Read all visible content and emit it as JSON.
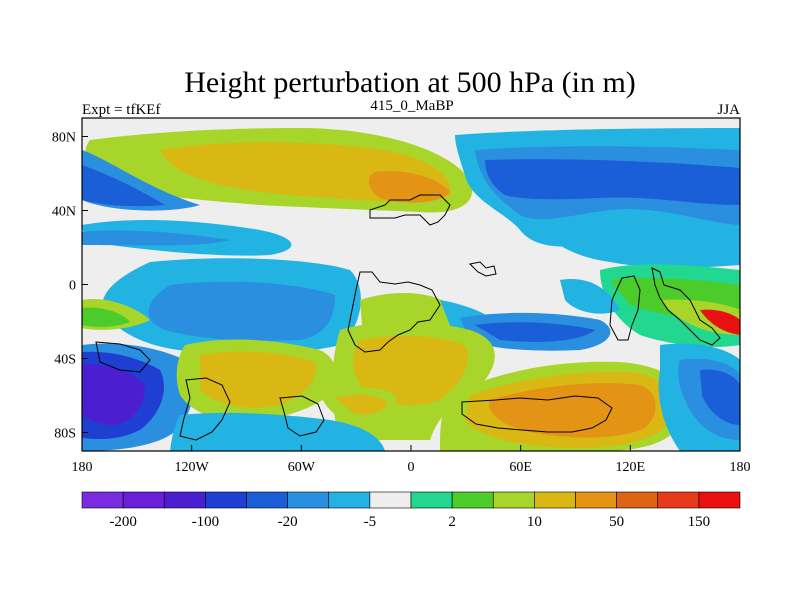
{
  "chart_data": {
    "type": "heatmap",
    "title": "Height perturbation at 500 hPa (in m)",
    "left_label": "Expt = tfKEf",
    "center_label": "415_0_MaBP",
    "right_label": "JJA",
    "x_ticks": [
      "180",
      "120W",
      "60W",
      "0",
      "60E",
      "120E",
      "180"
    ],
    "y_ticks": [
      "80N",
      "40N",
      "0",
      "40S",
      "80S"
    ],
    "xlim": [
      -180,
      180
    ],
    "ylim": [
      -90,
      90
    ],
    "colorbar": {
      "colors": [
        "#7b2be0",
        "#6a1fd8",
        "#4b1fcf",
        "#1f3fd2",
        "#1a5fd8",
        "#2b8fe0",
        "#23b3e3",
        "#eeeeee",
        "#22d78f",
        "#4ccc2a",
        "#a8d52a",
        "#d9b814",
        "#e39414",
        "#dc6414",
        "#e73a1a",
        "#e81010"
      ],
      "tick_labels": [
        "-200",
        "-100",
        "-20",
        "-5",
        "2",
        "10",
        "50",
        "150"
      ]
    }
  }
}
